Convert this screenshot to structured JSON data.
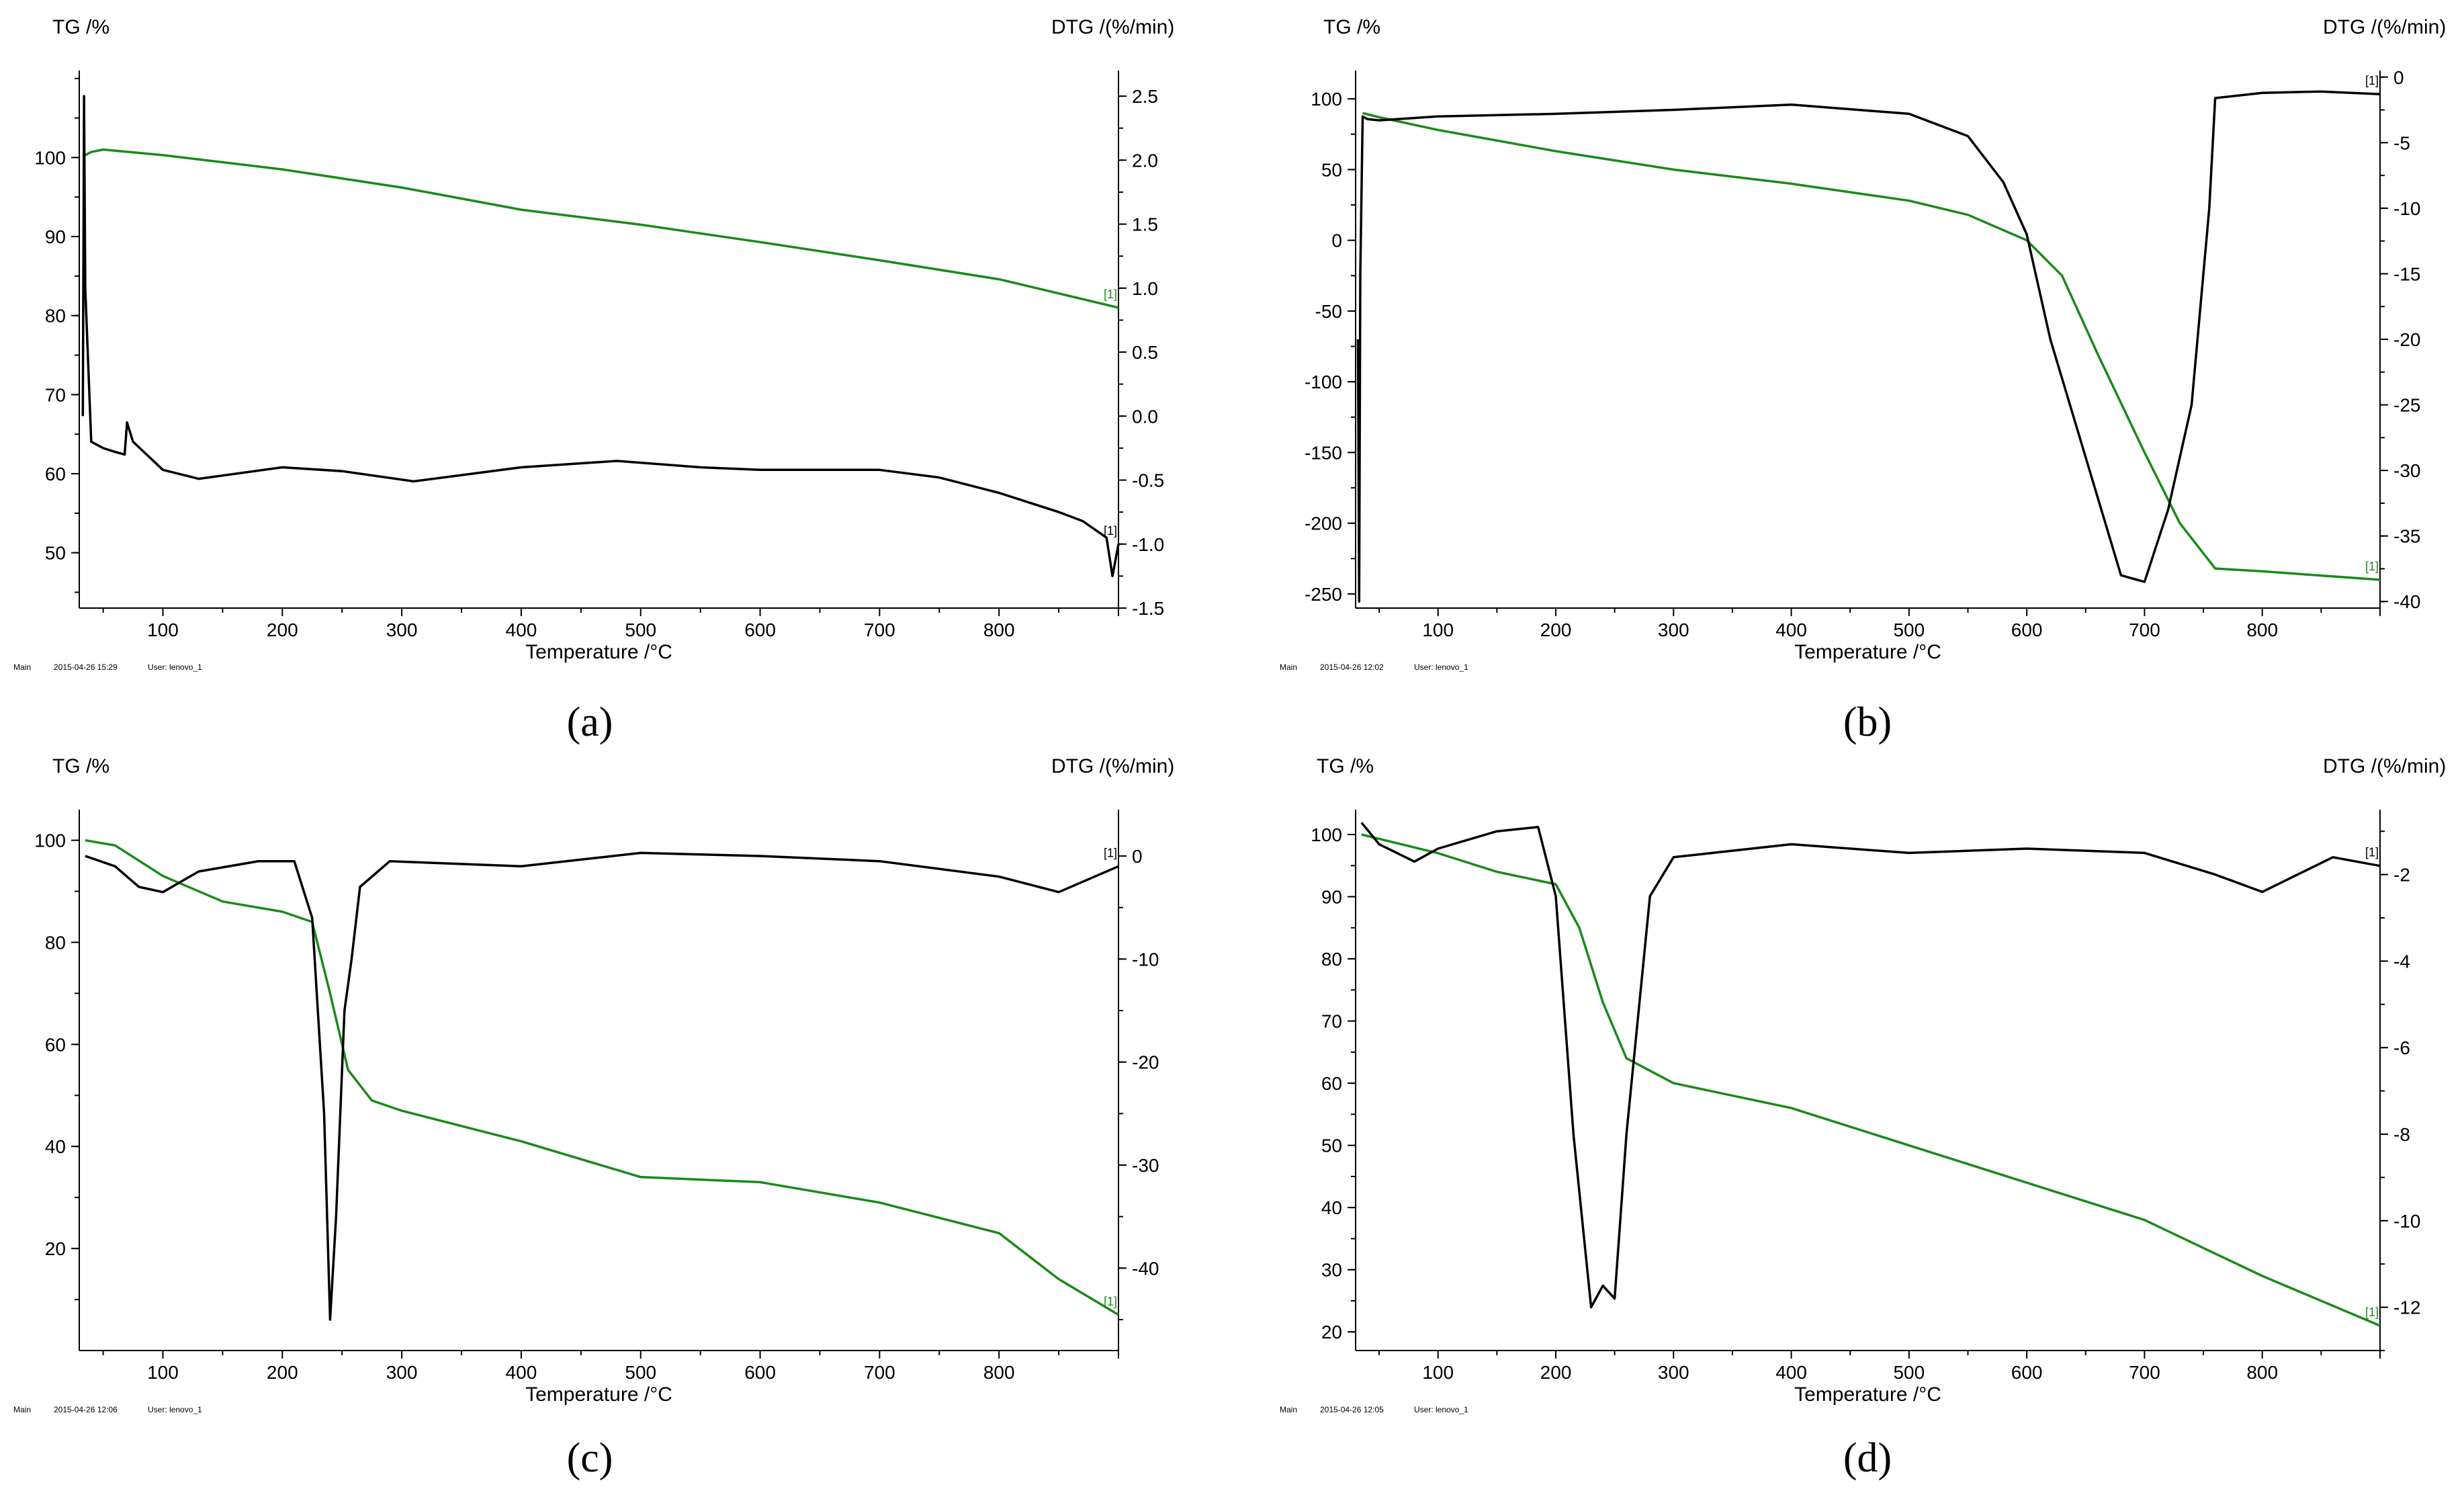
{
  "chart_data": [
    {
      "panel": "(a)",
      "type": "line",
      "left_axis_label": "TG /%",
      "right_axis_label": "DTG /(%/min)",
      "xlabel": "Temperature /°C",
      "footer": [
        "Main",
        "2015-04-26 15:29",
        "User: lenovo_1"
      ],
      "xlim": [
        30,
        900
      ],
      "x_ticks": [
        100,
        200,
        300,
        400,
        500,
        600,
        700,
        800
      ],
      "left_ylim": [
        43,
        111
      ],
      "left_ticks": [
        50,
        60,
        70,
        80,
        90,
        100
      ],
      "right_ylim": [
        -1.5,
        2.7
      ],
      "right_ticks": [
        -1.5,
        -1.0,
        -0.5,
        0.0,
        0.5,
        1.0,
        1.5,
        2.0,
        2.5
      ],
      "colors": {
        "tg": "#1a8a1a",
        "dtg": "#000000"
      },
      "series": [
        {
          "name": "TG",
          "axis": "left",
          "color": "#1a8a1a",
          "marker": "[1]",
          "points": [
            [
              35,
              100.3
            ],
            [
              40,
              100.7
            ],
            [
              50,
              101.0
            ],
            [
              100,
              100.3
            ],
            [
              200,
              98.5
            ],
            [
              300,
              96.2
            ],
            [
              400,
              93.4
            ],
            [
              500,
              91.5
            ],
            [
              600,
              89.3
            ],
            [
              700,
              87.0
            ],
            [
              800,
              84.6
            ],
            [
              900,
              81.0
            ]
          ]
        },
        {
          "name": "DTG",
          "axis": "right",
          "color": "#000000",
          "marker": "[1]",
          "points": [
            [
              33,
              0.0
            ],
            [
              34,
              2.5
            ],
            [
              35,
              1.0
            ],
            [
              40,
              -0.2
            ],
            [
              50,
              -0.25
            ],
            [
              60,
              -0.28
            ],
            [
              68,
              -0.3
            ],
            [
              70,
              -0.05
            ],
            [
              75,
              -0.2
            ],
            [
              100,
              -0.42
            ],
            [
              130,
              -0.49
            ],
            [
              200,
              -0.4
            ],
            [
              250,
              -0.43
            ],
            [
              310,
              -0.51
            ],
            [
              400,
              -0.4
            ],
            [
              480,
              -0.35
            ],
            [
              550,
              -0.4
            ],
            [
              600,
              -0.42
            ],
            [
              700,
              -0.42
            ],
            [
              750,
              -0.48
            ],
            [
              800,
              -0.6
            ],
            [
              850,
              -0.75
            ],
            [
              870,
              -0.82
            ],
            [
              890,
              -0.95
            ],
            [
              895,
              -1.25
            ],
            [
              900,
              -1.0
            ]
          ]
        }
      ]
    },
    {
      "panel": "(b)",
      "type": "line",
      "left_axis_label": "TG /%",
      "right_axis_label": "DTG /(%/min)",
      "xlabel": "Temperature /°C",
      "footer": [
        "Main",
        "2015-04-26 12:02",
        "User: lenovo_1"
      ],
      "xlim": [
        30,
        900
      ],
      "x_ticks": [
        100,
        200,
        300,
        400,
        500,
        600,
        700,
        800
      ],
      "left_ylim": [
        -260,
        120
      ],
      "left_ticks": [
        -250,
        -200,
        -150,
        -100,
        -50,
        0,
        50,
        100
      ],
      "right_ylim": [
        -40.5,
        0.5
      ],
      "right_ticks": [
        -40,
        -35,
        -30,
        -25,
        -20,
        -15,
        -10,
        -5,
        0
      ],
      "colors": {
        "tg": "#1a8a1a",
        "dtg": "#000000"
      },
      "series": [
        {
          "name": "TG",
          "axis": "left",
          "color": "#1a8a1a",
          "marker": "[1]",
          "points": [
            [
              36,
              90
            ],
            [
              50,
              87
            ],
            [
              100,
              78
            ],
            [
              200,
              63
            ],
            [
              300,
              50
            ],
            [
              400,
              40
            ],
            [
              500,
              28
            ],
            [
              550,
              18
            ],
            [
              600,
              0
            ],
            [
              630,
              -25
            ],
            [
              660,
              -80
            ],
            [
              700,
              -150
            ],
            [
              730,
              -200
            ],
            [
              760,
              -232
            ],
            [
              800,
              -234
            ],
            [
              850,
              -237
            ],
            [
              900,
              -240
            ]
          ]
        },
        {
          "name": "DTG",
          "axis": "right",
          "color": "#000000",
          "marker": "[1]",
          "points": [
            [
              32,
              -20
            ],
            [
              33,
              -40
            ],
            [
              34,
              -15
            ],
            [
              36,
              -3
            ],
            [
              40,
              -3.2
            ],
            [
              50,
              -3.3
            ],
            [
              100,
              -3.0
            ],
            [
              200,
              -2.8
            ],
            [
              300,
              -2.5
            ],
            [
              400,
              -2.1
            ],
            [
              500,
              -2.8
            ],
            [
              550,
              -4.5
            ],
            [
              580,
              -8
            ],
            [
              600,
              -12
            ],
            [
              620,
              -20
            ],
            [
              640,
              -26
            ],
            [
              660,
              -32
            ],
            [
              680,
              -38
            ],
            [
              700,
              -38.5
            ],
            [
              720,
              -33
            ],
            [
              740,
              -25
            ],
            [
              755,
              -10
            ],
            [
              760,
              -1.6
            ],
            [
              800,
              -1.2
            ],
            [
              850,
              -1.1
            ],
            [
              900,
              -1.3
            ]
          ]
        }
      ]
    },
    {
      "panel": "(c)",
      "type": "line",
      "left_axis_label": "TG /%",
      "right_axis_label": "DTG /(%/min)",
      "xlabel": "Temperature /°C",
      "footer": [
        "Main",
        "2015-04-26 12:06",
        "User: lenovo_1"
      ],
      "xlim": [
        30,
        900
      ],
      "x_ticks": [
        100,
        200,
        300,
        400,
        500,
        600,
        700,
        800
      ],
      "left_ylim": [
        0,
        106
      ],
      "left_ticks": [
        20,
        40,
        60,
        80,
        100
      ],
      "right_ylim": [
        -48,
        4.5
      ],
      "right_ticks": [
        -40,
        -30,
        -20,
        -10,
        0
      ],
      "colors": {
        "tg": "#1a8a1a",
        "dtg": "#000000"
      },
      "series": [
        {
          "name": "TG",
          "axis": "left",
          "color": "#1a8a1a",
          "marker": "[1]",
          "points": [
            [
              35,
              100
            ],
            [
              60,
              99
            ],
            [
              100,
              93
            ],
            [
              150,
              88
            ],
            [
              200,
              86
            ],
            [
              225,
              84
            ],
            [
              240,
              70
            ],
            [
              255,
              55
            ],
            [
              275,
              49
            ],
            [
              300,
              47
            ],
            [
              400,
              41
            ],
            [
              500,
              34
            ],
            [
              600,
              33
            ],
            [
              700,
              29
            ],
            [
              800,
              23
            ],
            [
              850,
              14
            ],
            [
              900,
              7
            ]
          ]
        },
        {
          "name": "DTG",
          "axis": "right",
          "color": "#000000",
          "marker": "[1]",
          "points": [
            [
              35,
              0
            ],
            [
              60,
              -1
            ],
            [
              80,
              -3
            ],
            [
              100,
              -3.5
            ],
            [
              130,
              -1.5
            ],
            [
              180,
              -0.5
            ],
            [
              210,
              -0.5
            ],
            [
              225,
              -6
            ],
            [
              235,
              -25
            ],
            [
              240,
              -45
            ],
            [
              245,
              -35
            ],
            [
              252,
              -15
            ],
            [
              258,
              -10
            ],
            [
              265,
              -3
            ],
            [
              290,
              -0.5
            ],
            [
              400,
              -1
            ],
            [
              500,
              0.3
            ],
            [
              600,
              0
            ],
            [
              700,
              -0.5
            ],
            [
              800,
              -2
            ],
            [
              850,
              -3.5
            ],
            [
              880,
              -2
            ],
            [
              900,
              -1
            ]
          ]
        }
      ]
    },
    {
      "panel": "(d)",
      "type": "line",
      "left_axis_label": "TG /%",
      "right_axis_label": "DTG /(%/min)",
      "xlabel": "Temperature /°C",
      "footer": [
        "Main",
        "2015-04-26 12:05",
        "User: lenovo_1"
      ],
      "xlim": [
        30,
        900
      ],
      "x_ticks": [
        100,
        200,
        300,
        400,
        500,
        600,
        700,
        800
      ],
      "left_ylim": [
        17,
        104
      ],
      "left_ticks": [
        20,
        30,
        40,
        50,
        60,
        70,
        80,
        90,
        100
      ],
      "right_ylim": [
        -13,
        -0.5
      ],
      "right_ticks": [
        -12,
        -10,
        -8,
        -6,
        -4,
        -2
      ],
      "colors": {
        "tg": "#1a8a1a",
        "dtg": "#000000"
      },
      "series": [
        {
          "name": "TG",
          "axis": "left",
          "color": "#1a8a1a",
          "marker": "[1]",
          "points": [
            [
              35,
              100
            ],
            [
              100,
              97
            ],
            [
              150,
              94
            ],
            [
              200,
              92
            ],
            [
              220,
              85
            ],
            [
              240,
              73
            ],
            [
              260,
              64
            ],
            [
              300,
              60
            ],
            [
              400,
              56
            ],
            [
              500,
              50
            ],
            [
              600,
              44
            ],
            [
              700,
              38
            ],
            [
              800,
              29
            ],
            [
              900,
              21
            ]
          ]
        },
        {
          "name": "DTG",
          "axis": "right",
          "color": "#000000",
          "marker": "[1]",
          "points": [
            [
              35,
              -0.8
            ],
            [
              50,
              -1.3
            ],
            [
              80,
              -1.7
            ],
            [
              100,
              -1.4
            ],
            [
              150,
              -1.0
            ],
            [
              185,
              -0.9
            ],
            [
              200,
              -2.5
            ],
            [
              215,
              -8
            ],
            [
              230,
              -12
            ],
            [
              240,
              -11.5
            ],
            [
              250,
              -11.8
            ],
            [
              260,
              -8
            ],
            [
              280,
              -2.5
            ],
            [
              300,
              -1.6
            ],
            [
              400,
              -1.3
            ],
            [
              500,
              -1.5
            ],
            [
              600,
              -1.4
            ],
            [
              700,
              -1.5
            ],
            [
              760,
              -2.0
            ],
            [
              800,
              -2.4
            ],
            [
              830,
              -2.0
            ],
            [
              860,
              -1.6
            ],
            [
              900,
              -1.8
            ]
          ]
        }
      ]
    }
  ]
}
